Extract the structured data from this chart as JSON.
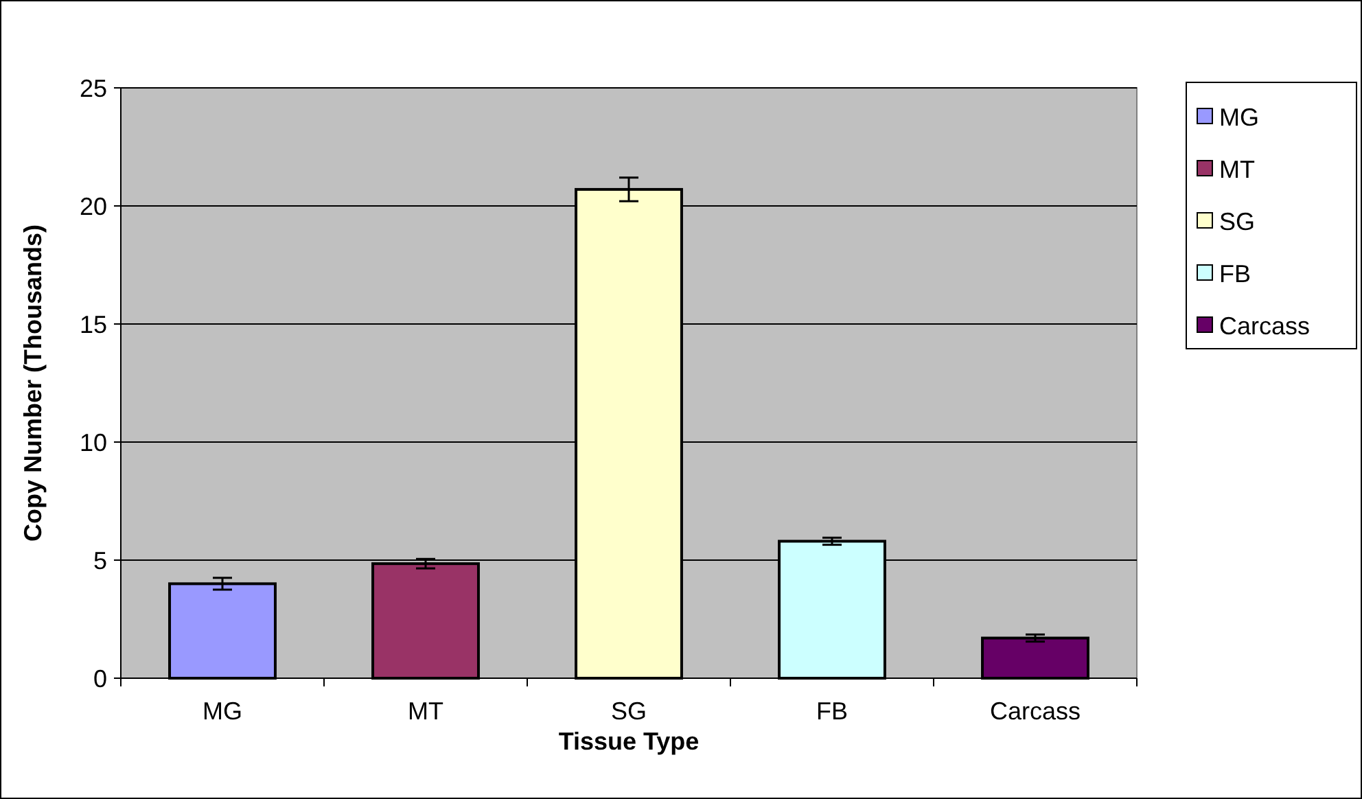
{
  "chart_data": {
    "type": "bar",
    "xlabel": "Tissue Type",
    "ylabel": "Copy Number (Thousands)",
    "categories": [
      "MG",
      "MT",
      "SG",
      "FB",
      "Carcass"
    ],
    "series": [
      {
        "name": "MG",
        "color": "#9999ff",
        "values": [
          4.0,
          null,
          null,
          null,
          null
        ],
        "errors": [
          0.25,
          null,
          null,
          null,
          null
        ]
      },
      {
        "name": "MT",
        "color": "#993366",
        "values": [
          null,
          4.85,
          null,
          null,
          null
        ],
        "errors": [
          null,
          0.2,
          null,
          null,
          null
        ]
      },
      {
        "name": "SG",
        "color": "#ffffcc",
        "values": [
          null,
          null,
          20.7,
          null,
          null
        ],
        "errors": [
          null,
          null,
          0.5,
          null,
          null
        ]
      },
      {
        "name": "FB",
        "color": "#ccffff",
        "values": [
          null,
          null,
          null,
          5.8,
          null
        ],
        "errors": [
          null,
          null,
          null,
          0.15,
          null
        ]
      },
      {
        "name": "Carcass",
        "color": "#660066",
        "values": [
          null,
          null,
          null,
          null,
          1.7
        ],
        "errors": [
          null,
          null,
          null,
          null,
          0.15
        ]
      }
    ],
    "ylim": [
      0,
      25
    ],
    "yticks": [
      0,
      5,
      10,
      15,
      20,
      25
    ],
    "grid": "y",
    "legend": "right"
  }
}
